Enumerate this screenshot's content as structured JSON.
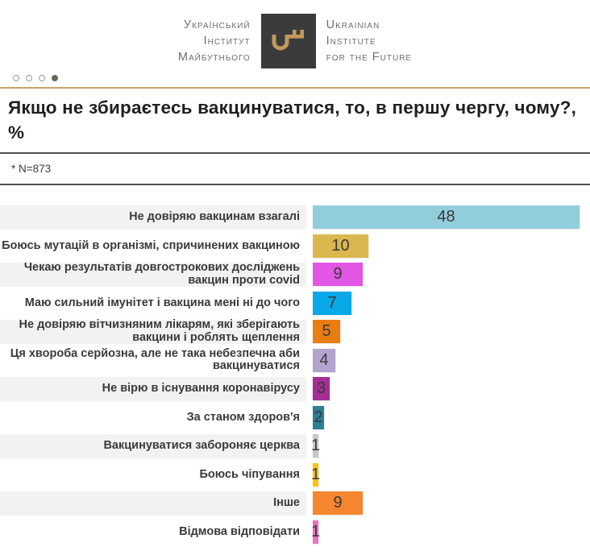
{
  "header": {
    "logo": {
      "left_lines": [
        "Український",
        "Інститут",
        "Майбутнього"
      ],
      "right_lines": [
        "Ukrainian",
        "Institute",
        "for the Future"
      ],
      "square_color": "#3B3B3D",
      "key_color": "#C29A5B"
    },
    "pagination": {
      "total": 4,
      "active_index": 3
    }
  },
  "title": "Якщо не збираєтесь вакцинуватися, то, в першу чергу, чому?, %",
  "note": "* N=873",
  "colors": {
    "gold_rule": "#C4A465",
    "dark_rule": "#4F4F4F",
    "row_band": "#F2F2F2",
    "value_text": "#3A3A3A"
  },
  "chart_data": {
    "type": "bar",
    "orientation": "horizontal",
    "title": "Якщо не збираєтесь вакцинуватися, то, в першу чергу, чому?, %",
    "xlabel": "",
    "ylabel": "",
    "xlim": [
      0,
      48
    ],
    "grid": false,
    "legend": "none",
    "value_labels": "inside-center",
    "categories": [
      "Не довіряю вакцинам взагалі",
      "Боюсь мутацій в організмі, спричинених вакциною",
      "Чекаю результатів довгострокових досліджень вакцин проти covid",
      "Маю сильний імунітет і вакцина мені ні до чого",
      "Не довіряю вітчизняним лікарям, які зберігають вакцини і роблять щеплення",
      "Ця хвороба серйозна, але не така небезпечна аби вакцинуватися",
      "Не вірю в існування коронавірусу",
      "За станом здоров'я",
      "Вакцинуватися забороняє церква",
      "Боюсь чіпування",
      "Інше",
      "Відмова відповідати"
    ],
    "values": [
      48,
      10,
      9,
      7,
      5,
      4,
      3,
      2,
      1,
      1,
      9,
      1
    ],
    "bar_colors": [
      "#92CDDC",
      "#DBB84F",
      "#E356E3",
      "#09A8E8",
      "#E87D10",
      "#B4A3CF",
      "#A42E95",
      "#2C7F95",
      "#C7C7C7",
      "#FFC30E",
      "#F6862F",
      "#EF6FC1"
    ]
  }
}
